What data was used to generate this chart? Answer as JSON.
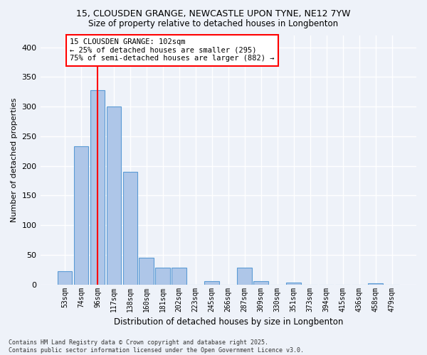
{
  "title1": "15, CLOUSDEN GRANGE, NEWCASTLE UPON TYNE, NE12 7YW",
  "title2": "Size of property relative to detached houses in Longbenton",
  "xlabel": "Distribution of detached houses by size in Longbenton",
  "ylabel": "Number of detached properties",
  "categories": [
    "53sqm",
    "74sqm",
    "96sqm",
    "117sqm",
    "138sqm",
    "160sqm",
    "181sqm",
    "202sqm",
    "223sqm",
    "245sqm",
    "266sqm",
    "287sqm",
    "309sqm",
    "330sqm",
    "351sqm",
    "373sqm",
    "394sqm",
    "415sqm",
    "436sqm",
    "458sqm",
    "479sqm"
  ],
  "values": [
    22,
    233,
    328,
    300,
    190,
    45,
    28,
    28,
    0,
    5,
    0,
    28,
    5,
    0,
    3,
    0,
    0,
    0,
    0,
    2,
    0
  ],
  "bar_color": "#aec6e8",
  "bar_edge_color": "#5b9bd5",
  "vline_x": 2,
  "vline_color": "red",
  "annotation_text": "15 CLOUSDEN GRANGE: 102sqm\n← 25% of detached houses are smaller (295)\n75% of semi-detached houses are larger (882) →",
  "annotation_box_color": "white",
  "annotation_box_edge": "red",
  "footer": "Contains HM Land Registry data © Crown copyright and database right 2025.\nContains public sector information licensed under the Open Government Licence v3.0.",
  "ylim": [
    0,
    420
  ],
  "background_color": "#eef2f9",
  "grid_color": "white"
}
